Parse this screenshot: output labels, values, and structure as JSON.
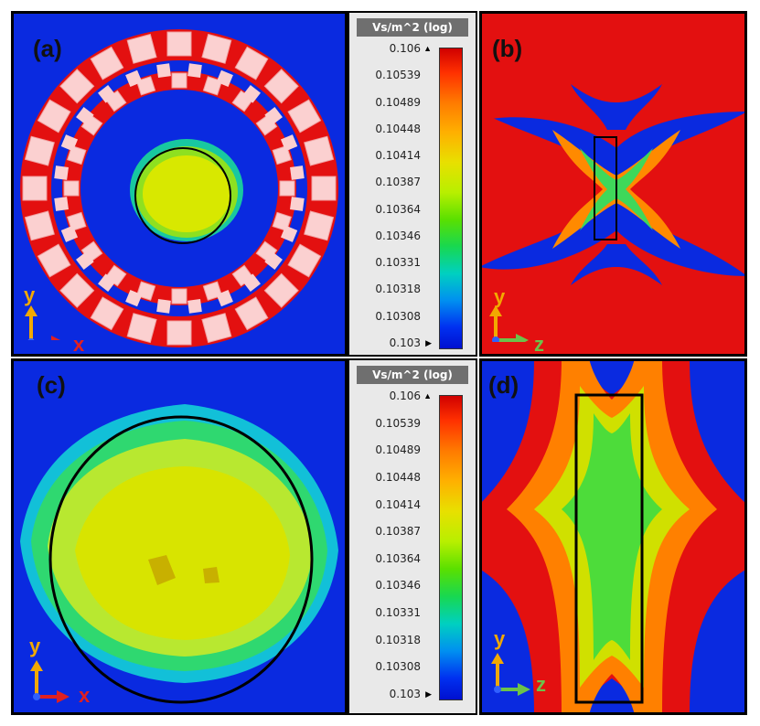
{
  "panels": {
    "a": {
      "label": "(a)",
      "axis_v": "y",
      "axis_h": "x"
    },
    "b": {
      "label": "(b)",
      "axis_v": "y",
      "axis_h": "z"
    },
    "c": {
      "label": "(c)",
      "axis_v": "y",
      "axis_h": "x"
    },
    "d": {
      "label": "(d)",
      "axis_v": "y",
      "axis_h": "z"
    }
  },
  "colorbar": {
    "title": "Vs/m^2 (log)",
    "ticks": [
      "0.106",
      "0.10539",
      "0.10489",
      "0.10448",
      "0.10414",
      "0.10387",
      "0.10364",
      "0.10346",
      "0.10331",
      "0.10318",
      "0.10308",
      "0.103"
    ]
  },
  "colors": {
    "background_min": "#0a2ae0",
    "max": "#e00000",
    "mid": "#c8e000",
    "axis_y": "#f2a900",
    "axis_x": "#e02020",
    "axis_z": "#6cc24a"
  }
}
